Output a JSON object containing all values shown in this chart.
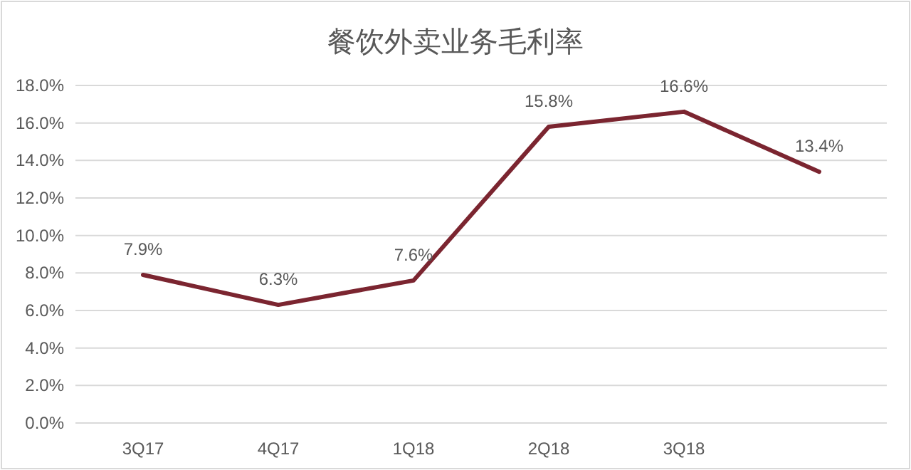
{
  "chart_data": {
    "type": "line",
    "title": "餐饮外卖业务毛利率",
    "categories": [
      "3Q17",
      "4Q17",
      "1Q18",
      "2Q18",
      "3Q18",
      null
    ],
    "series": [
      {
        "color": "#7b2530",
        "values": [
          7.9,
          6.3,
          7.6,
          15.8,
          16.6,
          13.4
        ],
        "value_labels": [
          "7.9%",
          "6.3%",
          "7.6%",
          "15.8%",
          "16.6%",
          "13.4%"
        ]
      }
    ],
    "ylim": [
      0,
      18
    ],
    "yticks": [
      {
        "value": 0,
        "label": "0.0%"
      },
      {
        "value": 2,
        "label": "2.0%"
      },
      {
        "value": 4,
        "label": "4.0%"
      },
      {
        "value": 6,
        "label": "6.0%"
      },
      {
        "value": 8,
        "label": "8.0%"
      },
      {
        "value": 10,
        "label": "10.0%"
      },
      {
        "value": 12,
        "label": "12.0%"
      },
      {
        "value": 14,
        "label": "14.0%"
      },
      {
        "value": 16,
        "label": "16.0%"
      },
      {
        "value": 18,
        "label": "18.0%"
      }
    ],
    "grid": "y",
    "marker": "none",
    "line_style": "solid"
  }
}
